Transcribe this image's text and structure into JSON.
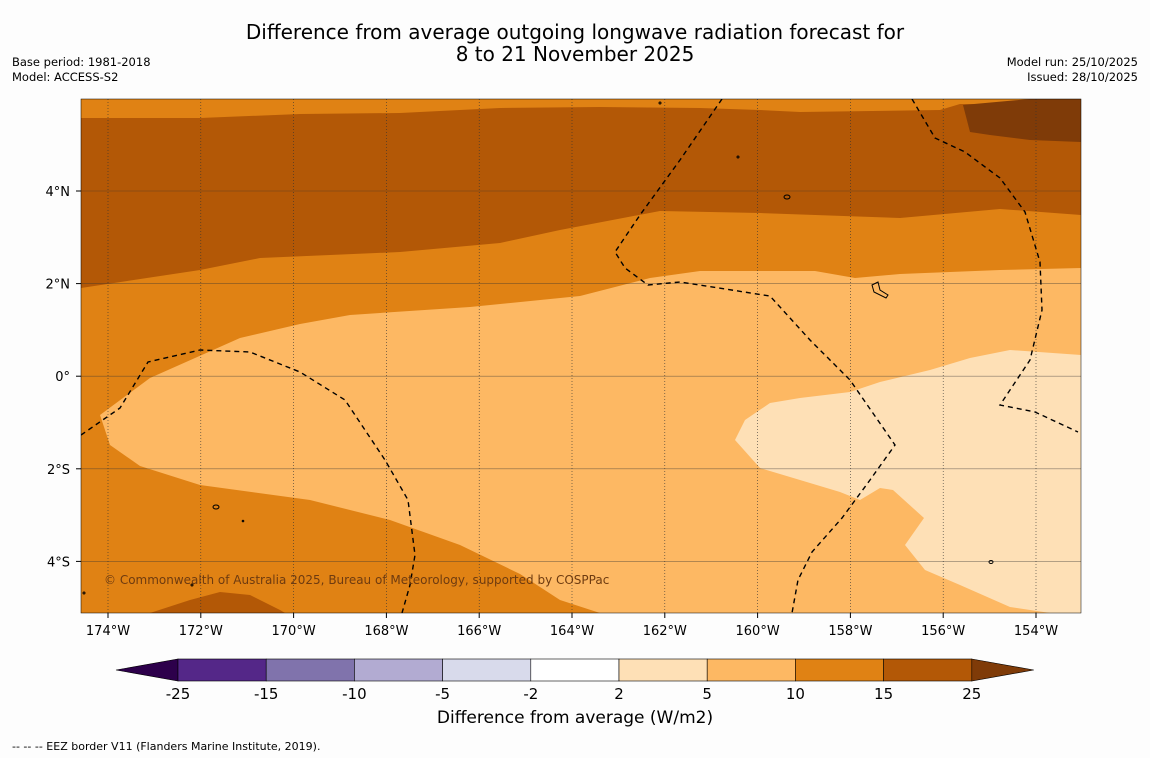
{
  "header": {
    "title_line1": "Difference from average outgoing longwave radiation forecast for",
    "title_line2": "8 to 21 November 2025",
    "base_period": "Base period: 1981-2018",
    "model": "Model: ACCESS-S2",
    "model_run": "Model run: 25/10/2025",
    "issued": "Issued: 28/10/2025"
  },
  "map": {
    "lon_labels": [
      "174°W",
      "172°W",
      "170°W",
      "168°W",
      "166°W",
      "164°W",
      "162°W",
      "160°W",
      "158°W",
      "156°W",
      "154°W"
    ],
    "lat_labels": [
      "4°N",
      "2°N",
      "0°",
      "2°S",
      "4°S"
    ],
    "copyright": "© Commonwealth of Australia 2025, Bureau of Meteorology, supported by COSPPac"
  },
  "colorbar": {
    "ticks": [
      "-25",
      "-15",
      "-10",
      "-5",
      "-2",
      "2",
      "5",
      "10",
      "15",
      "25"
    ],
    "colors": [
      "#542788",
      "#8073ac",
      "#b2abd2",
      "#d8daeb",
      "#ffffff",
      "#fee0b6",
      "#fdb863",
      "#e08214",
      "#b35806"
    ],
    "under_color": "#2d004b",
    "over_color": "#7f3b08",
    "label": "Difference from average (W/m2)"
  },
  "footnote": "--  --  -- EEZ border V11 (Flanders Marine Institute, 2019)."
}
